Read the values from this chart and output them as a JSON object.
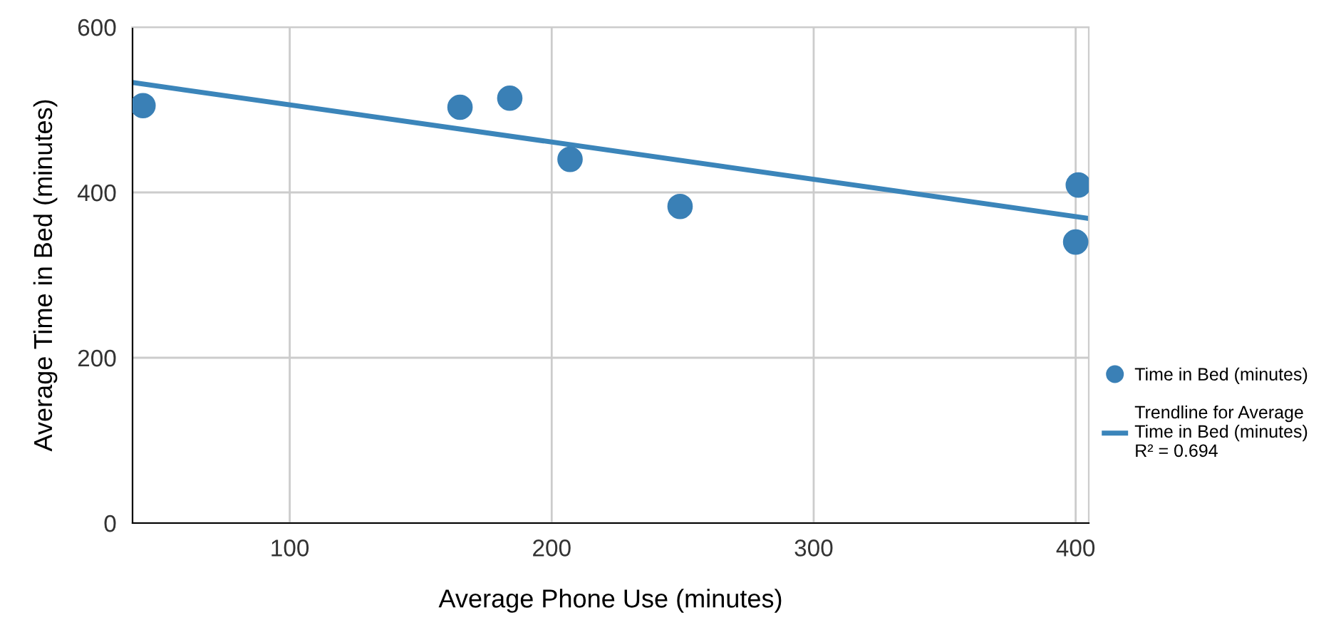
{
  "chart_data": {
    "type": "scatter",
    "xlabel": "Average Phone Use (minutes)",
    "ylabel": "Average Time in Bed (minutes)",
    "xlim": [
      40,
      405
    ],
    "ylim": [
      0,
      600
    ],
    "xticks": [
      100,
      200,
      300,
      400
    ],
    "yticks": [
      0,
      200,
      400,
      600
    ],
    "grid": true,
    "legend": "right",
    "series": [
      {
        "name": "Time in Bed (minutes)",
        "color": "#3a80b6",
        "marker": "circle",
        "x": [
          44,
          165,
          184,
          207,
          249,
          401,
          400
        ],
        "values": [
          505,
          503,
          514,
          440,
          383,
          409,
          340
        ]
      },
      {
        "name": "Trendline for Average\nTime in Bed (minutes)\nR² = 0.694",
        "type": "line",
        "color": "#3b85ba",
        "x": [
          40,
          404
        ],
        "values": [
          533,
          369
        ]
      }
    ]
  }
}
